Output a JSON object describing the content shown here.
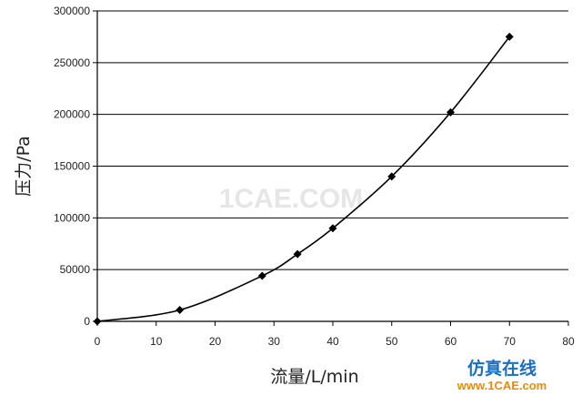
{
  "chart_data": {
    "type": "line",
    "xlabel": "流量/L/min",
    "ylabel": "压力/Pa",
    "xlim": [
      0,
      80
    ],
    "ylim": [
      0,
      300000
    ],
    "xticks": [
      0,
      10,
      20,
      30,
      40,
      50,
      60,
      70,
      80
    ],
    "yticks": [
      0,
      50000,
      100000,
      150000,
      200000,
      250000,
      300000
    ],
    "grid": "horizontal",
    "marker": "diamond",
    "line_color": "#000000",
    "x": [
      0,
      14,
      28,
      34,
      40,
      50,
      60,
      70
    ],
    "y": [
      0,
      11000,
      44000,
      65000,
      90000,
      140000,
      202000,
      275000
    ]
  },
  "watermark": "1CAE.COM",
  "logo": {
    "cn_text": "仿真在线",
    "en_text": "www.1CAE.com"
  }
}
